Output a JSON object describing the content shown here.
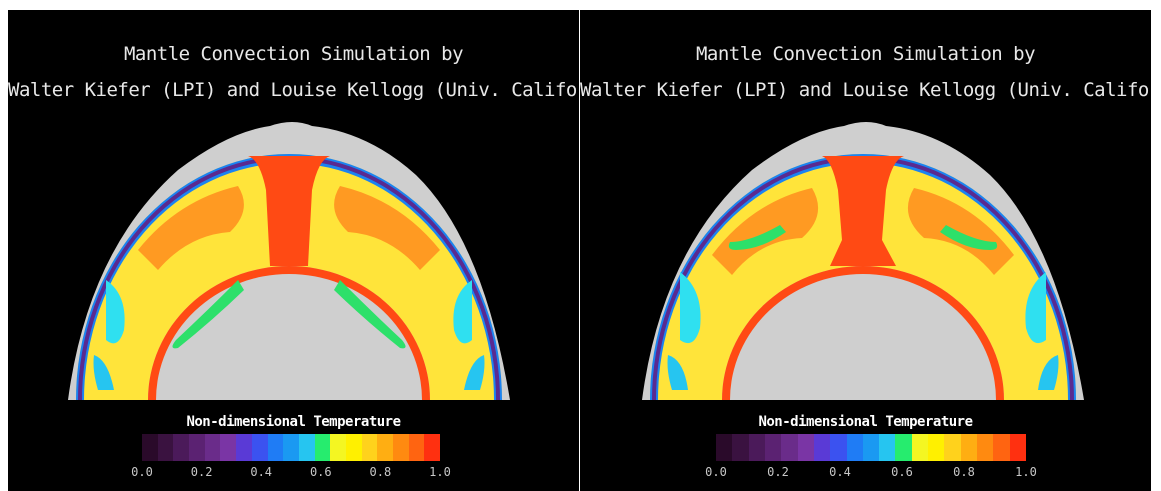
{
  "panels": [
    {
      "title_line1": "Mantle Convection Simulation by",
      "title_line2": "Walter Kiefer (LPI) and Louise Kellogg (Univ. California)",
      "colorbar_title": "Non-dimensional Temperature",
      "colorbar_ticks": [
        "0.0",
        "0.2",
        "0.4",
        "0.6",
        "0.8",
        "1.0"
      ]
    },
    {
      "title_line1": "Mantle Convection Simulation by",
      "title_line2": "Walter Kiefer (LPI) and Louise Kellogg (Univ. California)",
      "colorbar_title": "Non-dimensional Temperature",
      "colorbar_ticks": [
        "0.0",
        "0.2",
        "0.4",
        "0.6",
        "0.8",
        "1.0"
      ]
    }
  ],
  "colorbar_colors": [
    "#2a0a2a",
    "#3a1240",
    "#4b1a5a",
    "#5b2272",
    "#6a2c8a",
    "#7a35a5",
    "#5a3ad6",
    "#3b52f0",
    "#1f7cf5",
    "#1a99f2",
    "#26c5f0",
    "#26ec6e",
    "#f4f622",
    "#fff000",
    "#ffd21c",
    "#ffae12",
    "#ff8a10",
    "#ff6411",
    "#ff3010"
  ],
  "colors": {
    "background": "#000000",
    "crust": "#cfcfcf",
    "plume": "#ff4a14",
    "mantle_warm": "#ffe43a",
    "mantle_orange": "#ff9a22",
    "cold_blue": "#1b83f2",
    "cold_cyan": "#2fe0f0",
    "cold_green": "#2de06a",
    "edge_purple": "#5a2a90"
  }
}
